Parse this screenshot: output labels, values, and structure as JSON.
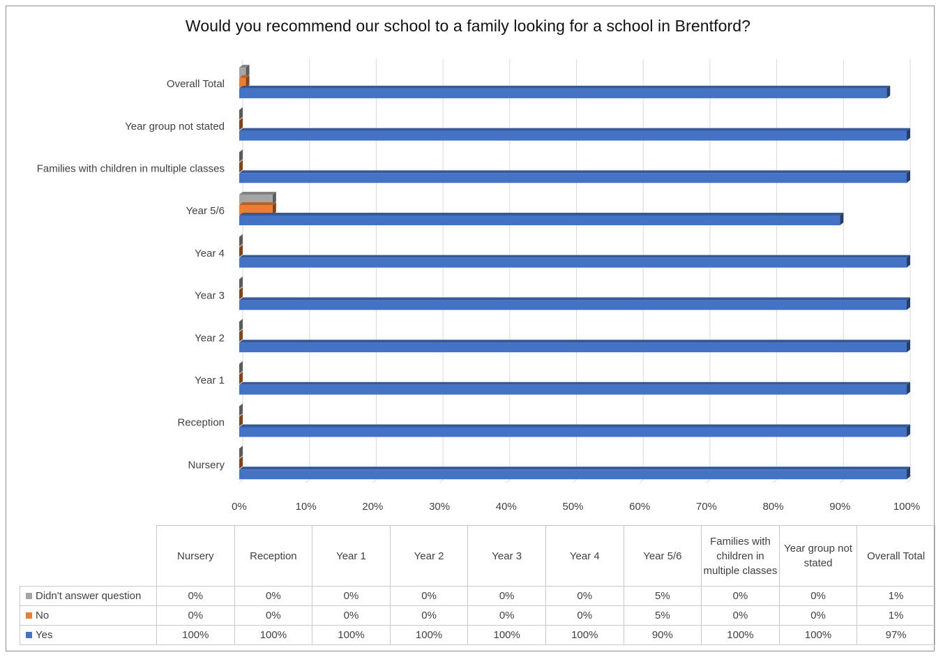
{
  "chart_data": {
    "type": "bar",
    "orientation": "horizontal",
    "title": "Would you recommend our school to a family looking for a school in Brentford?",
    "categories": [
      "Nursery",
      "Reception",
      "Year 1",
      "Year 2",
      "Year 3",
      "Year 4",
      "Year 5/6",
      "Families with children in multiple classes",
      "Year group not stated",
      "Overall Total"
    ],
    "series": [
      {
        "name": "Yes",
        "color": "#4472C4",
        "values": [
          100,
          100,
          100,
          100,
          100,
          100,
          90,
          100,
          100,
          97
        ]
      },
      {
        "name": "No",
        "color": "#ED7D31",
        "values": [
          0,
          0,
          0,
          0,
          0,
          0,
          5,
          0,
          0,
          1
        ]
      },
      {
        "name": "Didn't answer question",
        "color": "#A5A5A5",
        "values": [
          0,
          0,
          0,
          0,
          0,
          0,
          5,
          0,
          0,
          1
        ]
      }
    ],
    "xlim": [
      0,
      100
    ],
    "x_ticks": [
      "0%",
      "10%",
      "20%",
      "30%",
      "40%",
      "50%",
      "60%",
      "70%",
      "80%",
      "90%",
      "100%"
    ],
    "grid": true,
    "data_table": {
      "header": [
        "Nursery",
        "Reception",
        "Year 1",
        "Year 2",
        "Year 3",
        "Year 4",
        "Year 5/6",
        "Families with children in multiple classes",
        "Year group not stated",
        "Overall Total"
      ],
      "rows": [
        {
          "series": "Didn't answer question",
          "color": "#A5A5A5",
          "cells": [
            "0%",
            "0%",
            "0%",
            "0%",
            "0%",
            "0%",
            "5%",
            "0%",
            "0%",
            "1%"
          ]
        },
        {
          "series": "No",
          "color": "#ED7D31",
          "cells": [
            "0%",
            "0%",
            "0%",
            "0%",
            "0%",
            "0%",
            "5%",
            "0%",
            "0%",
            "1%"
          ]
        },
        {
          "series": "Yes",
          "color": "#4472C4",
          "cells": [
            "100%",
            "100%",
            "100%",
            "100%",
            "100%",
            "100%",
            "90%",
            "100%",
            "100%",
            "97%"
          ]
        }
      ]
    }
  }
}
